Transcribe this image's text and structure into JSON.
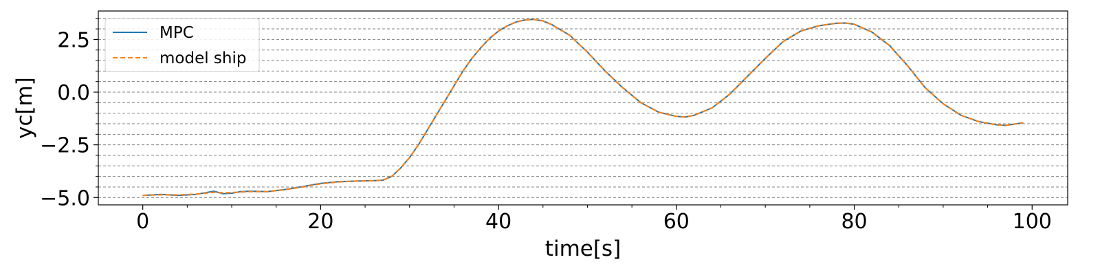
{
  "chart_data": {
    "type": "line",
    "title": "",
    "xlabel": "time[s]",
    "ylabel": "yc[m]",
    "xlim": [
      -5,
      104
    ],
    "ylim": [
      -5.35,
      3.85
    ],
    "xticks": [
      0,
      20,
      40,
      60,
      80,
      100
    ],
    "xtick_labels": [
      "0",
      "20",
      "40",
      "60",
      "80",
      "100"
    ],
    "yticks": [
      -5.0,
      -2.5,
      0.0,
      2.5
    ],
    "ytick_labels": [
      "−5.0",
      "−2.5",
      "0.0",
      "2.5"
    ],
    "grid": {
      "axis": "y",
      "minor_step": 0.5,
      "style": "dashed"
    },
    "legend_position": "top-left",
    "series": [
      {
        "name": "MPC",
        "color": "#1f77b4",
        "style": "solid",
        "x": [
          0,
          2,
          4,
          6,
          8,
          9,
          10,
          11,
          12,
          14,
          16,
          18,
          20,
          22,
          24,
          26,
          27,
          28,
          29,
          30,
          31,
          32,
          33,
          34,
          35,
          36,
          37,
          38,
          39,
          40,
          41,
          42,
          43,
          44,
          45,
          46,
          48,
          50,
          52,
          54,
          56,
          58,
          60,
          61,
          62,
          64,
          66,
          68,
          70,
          72,
          74,
          76,
          78,
          79,
          80,
          82,
          84,
          86,
          88,
          90,
          92,
          94,
          96,
          97,
          98,
          99
        ],
        "y": [
          -4.9,
          -4.85,
          -4.9,
          -4.85,
          -4.7,
          -4.82,
          -4.8,
          -4.72,
          -4.7,
          -4.72,
          -4.62,
          -4.48,
          -4.33,
          -4.25,
          -4.22,
          -4.2,
          -4.18,
          -4.0,
          -3.6,
          -3.1,
          -2.5,
          -1.8,
          -1.1,
          -0.4,
          0.3,
          1.0,
          1.6,
          2.1,
          2.55,
          2.9,
          3.15,
          3.33,
          3.43,
          3.45,
          3.38,
          3.2,
          2.7,
          1.9,
          1.0,
          0.2,
          -0.5,
          -0.95,
          -1.15,
          -1.18,
          -1.1,
          -0.75,
          -0.1,
          0.75,
          1.6,
          2.4,
          2.9,
          3.15,
          3.27,
          3.28,
          3.22,
          2.85,
          2.2,
          1.25,
          0.2,
          -0.55,
          -1.1,
          -1.4,
          -1.55,
          -1.58,
          -1.52,
          -1.45
        ]
      },
      {
        "name": "model ship",
        "color": "#ff7f0e",
        "style": "dashed",
        "x": [
          0,
          2,
          4,
          6,
          8,
          9,
          10,
          11,
          12,
          14,
          16,
          18,
          20,
          22,
          24,
          26,
          27,
          28,
          29,
          30,
          31,
          32,
          33,
          34,
          35,
          36,
          37,
          38,
          39,
          40,
          41,
          42,
          43,
          44,
          45,
          46,
          48,
          50,
          52,
          54,
          56,
          58,
          60,
          61,
          62,
          64,
          66,
          68,
          70,
          72,
          74,
          76,
          78,
          79,
          80,
          82,
          84,
          86,
          88,
          90,
          92,
          94,
          96,
          97,
          98,
          99
        ],
        "y": [
          -4.9,
          -4.87,
          -4.88,
          -4.84,
          -4.75,
          -4.78,
          -4.77,
          -4.74,
          -4.72,
          -4.72,
          -4.63,
          -4.5,
          -4.35,
          -4.26,
          -4.22,
          -4.2,
          -4.18,
          -4.0,
          -3.6,
          -3.1,
          -2.5,
          -1.8,
          -1.1,
          -0.4,
          0.3,
          1.0,
          1.6,
          2.1,
          2.55,
          2.9,
          3.15,
          3.33,
          3.43,
          3.45,
          3.38,
          3.2,
          2.7,
          1.9,
          1.0,
          0.2,
          -0.5,
          -0.95,
          -1.15,
          -1.18,
          -1.1,
          -0.75,
          -0.1,
          0.75,
          1.6,
          2.4,
          2.9,
          3.15,
          3.27,
          3.28,
          3.22,
          2.85,
          2.2,
          1.25,
          0.2,
          -0.55,
          -1.1,
          -1.4,
          -1.55,
          -1.58,
          -1.52,
          -1.45
        ]
      }
    ]
  }
}
